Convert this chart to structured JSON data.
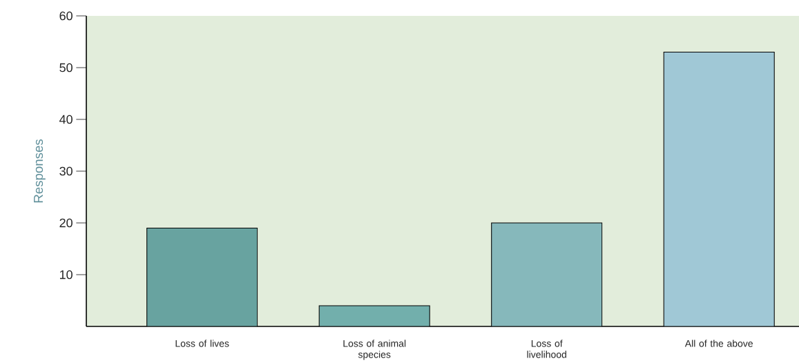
{
  "chart_data": {
    "type": "bar",
    "ylabel": "Responses",
    "categories": [
      "Loss of lives",
      "Loss of animal species",
      "Loss of livelihood",
      "All of the above"
    ],
    "values": [
      19,
      4,
      20,
      53
    ],
    "colors": [
      "#68a3a0",
      "#72afac",
      "#86b8bb",
      "#a0c8d6"
    ],
    "ylim": [
      0,
      60
    ],
    "yticks": [
      10,
      20,
      30,
      40,
      50,
      60
    ],
    "grid": false
  }
}
